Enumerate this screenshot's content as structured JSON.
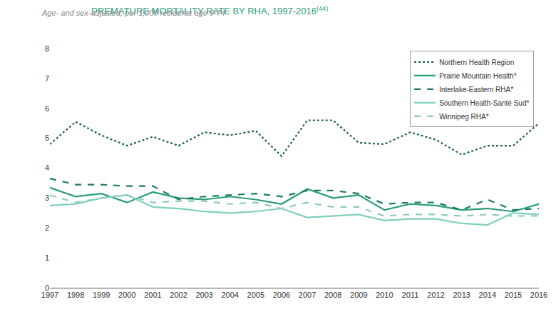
{
  "chart_data": {
    "type": "line",
    "title": "PREMATURE MORTALITY RATE BY RHA, 1997-2016",
    "title_ref": "(44)",
    "subtitle": "Age- and sex-adjusted, per 1,000 residents age 0-74",
    "x": [
      1997,
      1998,
      1999,
      2000,
      2001,
      2002,
      2003,
      2004,
      2005,
      2006,
      2007,
      2008,
      2009,
      2010,
      2011,
      2012,
      2013,
      2014,
      2015,
      2016
    ],
    "xlim": [
      1997,
      2016
    ],
    "xticks": [
      1997,
      1998,
      1999,
      2000,
      2001,
      2002,
      2003,
      2004,
      2005,
      2006,
      2007,
      2008,
      2009,
      2010,
      2011,
      2012,
      2013,
      2014,
      2015,
      2016
    ],
    "ylim": [
      0,
      8
    ],
    "yticks": [
      0,
      1,
      2,
      3,
      4,
      5,
      6,
      7,
      8
    ],
    "grid": false,
    "legend": "top right",
    "series": [
      {
        "name": "Northern Health Region",
        "color": "#1f5f5b",
        "line_style": "dotted",
        "values": [
          4.8,
          5.55,
          5.1,
          4.75,
          5.05,
          4.75,
          5.2,
          5.1,
          5.25,
          4.4,
          5.6,
          5.6,
          4.85,
          4.8,
          5.2,
          4.95,
          4.45,
          4.75,
          4.75,
          5.5
        ]
      },
      {
        "name": "Prairie Mountain Health*",
        "color": "#2a9d7a",
        "line_style": "solid",
        "values": [
          3.35,
          3.05,
          3.15,
          2.85,
          3.2,
          3.0,
          2.95,
          3.05,
          2.95,
          2.8,
          3.3,
          3.0,
          3.1,
          2.6,
          2.8,
          2.75,
          2.6,
          2.65,
          2.55,
          2.8
        ]
      },
      {
        "name": "Interlake-Eastern RHA*",
        "color": "#1f7a63",
        "line_style": "dashed",
        "values": [
          3.65,
          3.45,
          3.45,
          3.4,
          3.4,
          2.95,
          3.05,
          3.1,
          3.15,
          3.05,
          3.25,
          3.25,
          3.15,
          2.8,
          2.85,
          2.85,
          2.6,
          2.95,
          2.6,
          2.65
        ]
      },
      {
        "name": "Southern Health-Santé Sud*",
        "color": "#7fcfbf",
        "line_style": "solid",
        "values": [
          2.75,
          2.8,
          3.0,
          3.1,
          2.7,
          2.65,
          2.55,
          2.5,
          2.55,
          2.65,
          2.35,
          2.4,
          2.45,
          2.25,
          2.3,
          2.3,
          2.15,
          2.1,
          2.5,
          2.45
        ]
      },
      {
        "name": "Winnipeg RHA*",
        "color": "#8fc9c0",
        "line_style": "dashed",
        "values": [
          3.1,
          2.85,
          3.0,
          3.1,
          2.85,
          2.9,
          2.9,
          2.8,
          2.85,
          2.65,
          2.85,
          2.7,
          2.7,
          2.4,
          2.45,
          2.45,
          2.4,
          2.45,
          2.4,
          2.4
        ]
      }
    ]
  }
}
